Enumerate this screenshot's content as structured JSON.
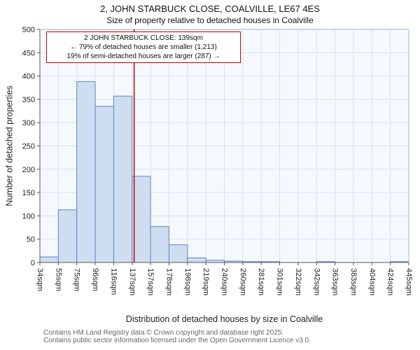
{
  "title": "2, JOHN STARBUCK CLOSE, COALVILLE, LE67 4ES",
  "subtitle": "Size of property relative to detached houses in Coalville",
  "annotation": {
    "line1": "2 JOHN STARBUCK CLOSE: 139sqm",
    "line2": "← 79% of detached houses are smaller (1,213)",
    "line3": "19% of semi-detached houses are larger (287) →"
  },
  "chart_data": {
    "type": "bar",
    "title": "2, JOHN STARBUCK CLOSE, COALVILLE, LE67 4ES — Size of property relative to detached houses in Coalville",
    "xlabel": "Distribution of detached houses by size in Coalville",
    "ylabel": "Number of detached properties",
    "categories": [
      "34sqm",
      "55sqm",
      "75sqm",
      "96sqm",
      "116sqm",
      "137sqm",
      "157sqm",
      "178sqm",
      "198sqm",
      "219sqm",
      "240sqm",
      "260sqm",
      "281sqm",
      "301sqm",
      "322sqm",
      "342sqm",
      "363sqm",
      "383sqm",
      "404sqm",
      "424sqm",
      "445sqm"
    ],
    "values": [
      12,
      113,
      388,
      335,
      357,
      185,
      77,
      38,
      10,
      5,
      3,
      2,
      2,
      0,
      0,
      2,
      0,
      0,
      0,
      2
    ],
    "ylim": [
      0,
      500
    ],
    "ytick_step": 50,
    "x_min_sqm": 34,
    "x_max_sqm": 445,
    "marker": {
      "value_sqm": 139,
      "color": "#cc0000"
    },
    "grid": true,
    "legend": "none",
    "bar_fill": "#cfddf1",
    "bar_stroke": "#5b87c5",
    "plot_bg": "#f5f8fd",
    "grid_color": "#d9e1f1",
    "spine_color": "#555555"
  },
  "footer": {
    "line1": "Contains HM Land Registry data © Crown copyright and database right 2025.",
    "line2": "Contains public sector information licensed under the Open Government Licence v3.0."
  }
}
